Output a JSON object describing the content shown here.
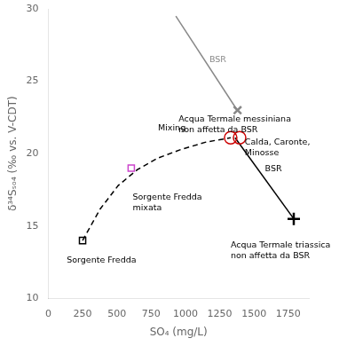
{
  "chart_data": {
    "type": "scatter",
    "xlabel": "SO₄ (mg/L)",
    "ylabel": "δ³⁴Sₛₒ₄ (‰ vs. V-CDT)",
    "xlim": [
      0,
      1900
    ],
    "ylim": [
      10,
      30
    ],
    "xticks": [
      0,
      250,
      500,
      750,
      1000,
      1250,
      1500,
      1750
    ],
    "yticks": [
      10,
      15,
      20,
      25,
      30
    ],
    "grid": false,
    "series": [
      {
        "type": "line",
        "line_style": "dashed",
        "color": "#000000",
        "x": [
          250,
          380,
          510,
          650,
          800,
          970,
          1150,
          1330
        ],
        "values": [
          14.0,
          16.2,
          17.8,
          18.9,
          19.7,
          20.3,
          20.8,
          21.1
        ]
      },
      {
        "type": "line",
        "line_style": "solid",
        "color": "#888888",
        "x": [
          1378,
          930
        ],
        "values": [
          23.0,
          29.5
        ]
      },
      {
        "type": "line",
        "line_style": "solid",
        "color": "#000000",
        "x": [
          1362,
          1790
        ],
        "values": [
          21.1,
          15.5
        ]
      },
      {
        "type": "scatter",
        "marker": "square",
        "color": "#000000",
        "x": [
          250
        ],
        "values": [
          14.0
        ]
      },
      {
        "type": "scatter",
        "marker": "square",
        "color": "#cc44cc",
        "x": [
          605
        ],
        "values": [
          19.0
        ]
      },
      {
        "type": "scatter",
        "marker": "x",
        "color": "#888888",
        "x": [
          1380
        ],
        "values": [
          23.0
        ]
      },
      {
        "type": "scatter",
        "marker": "plus",
        "color": "#000000",
        "x": [
          1790
        ],
        "values": [
          15.5
        ]
      },
      {
        "type": "scatter",
        "marker": "circle",
        "color": "#cc0000",
        "x": [
          1330,
          1395
        ],
        "values": [
          21.1,
          21.1
        ]
      }
    ],
    "annotations": [
      {
        "text": "Sorgente Fredda",
        "x": 135,
        "y": 12.5,
        "color": "#000000"
      },
      {
        "text": "Sorgente Fredda\nmixata",
        "x": 615,
        "y": 16.8,
        "color": "#000000"
      },
      {
        "text": "Acqua Termale messiniana\nnon affetta da BSR",
        "x": 950,
        "y": 22.2,
        "color": "#000000"
      },
      {
        "text": "Acqua Termale triassica\nnon affetta da BSR",
        "x": 1330,
        "y": 13.5,
        "color": "#000000"
      },
      {
        "text": "Calda, Caronte,\nMinosse",
        "x": 1433,
        "y": 20.6,
        "color": "#000000"
      },
      {
        "text": "Mixing",
        "x": 800,
        "y": 21.6,
        "color": "#000000"
      },
      {
        "text": "BSR",
        "x": 1175,
        "y": 26.3,
        "color": "#888888"
      },
      {
        "text": "BSR",
        "x": 1580,
        "y": 18.8,
        "color": "#000000"
      }
    ]
  }
}
